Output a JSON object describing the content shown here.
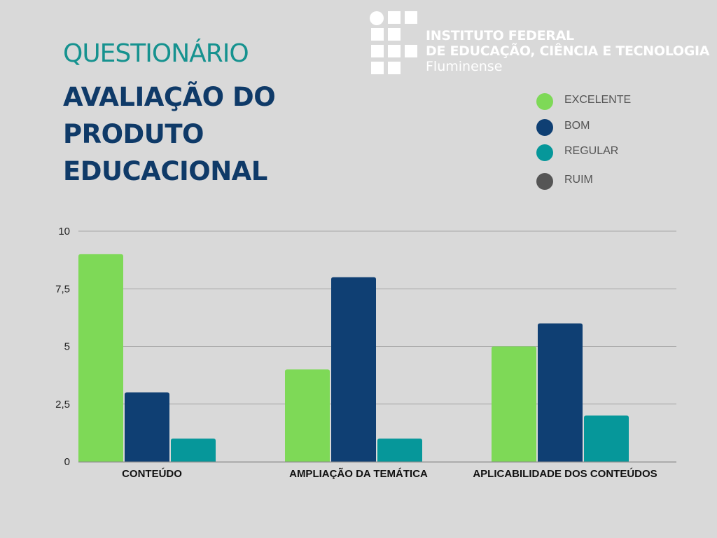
{
  "header": {
    "kicker": "QUESTIONÁRIO",
    "title_line1": "AVALIAÇÃO DO",
    "title_line2": "PRODUTO",
    "title_line3": "EDUCACIONAL"
  },
  "logo": {
    "line1": "INSTITUTO FEDERAL",
    "line2": "DE EDUCAÇÃO, CIÊNCIA E TECNOLOGIA",
    "line3": "Fluminense"
  },
  "colors": {
    "background": "#d9d9d9",
    "excelente": "#7ed957",
    "bom": "#0f3f73",
    "regular": "#06979a",
    "ruim": "#555555",
    "title": "#0f3a68",
    "kicker": "#16928f"
  },
  "chart_data": {
    "type": "bar",
    "title": "",
    "xlabel": "",
    "ylabel": "",
    "ylim": [
      0,
      10
    ],
    "yticks": [
      {
        "value": 0,
        "label": "0"
      },
      {
        "value": 2.5,
        "label": "2,5"
      },
      {
        "value": 5,
        "label": "5"
      },
      {
        "value": 7.5,
        "label": "7,5"
      },
      {
        "value": 10,
        "label": "10"
      }
    ],
    "grid": true,
    "legend_position": "top-right",
    "categories": [
      "CONTEÚDO",
      "AMPLIAÇÃO DA TEMÁTICA",
      "APLICABILIDADE DOS CONTEÚDOS"
    ],
    "series": [
      {
        "name": "EXCELENTE",
        "color": "#7ed957",
        "values": [
          9,
          4,
          5
        ]
      },
      {
        "name": "BOM",
        "color": "#0f3f73",
        "values": [
          3,
          8,
          6
        ]
      },
      {
        "name": "REGULAR",
        "color": "#06979a",
        "values": [
          1,
          1,
          2
        ]
      },
      {
        "name": "RUIM",
        "color": "#555555",
        "values": [
          0,
          0,
          0
        ]
      }
    ]
  }
}
